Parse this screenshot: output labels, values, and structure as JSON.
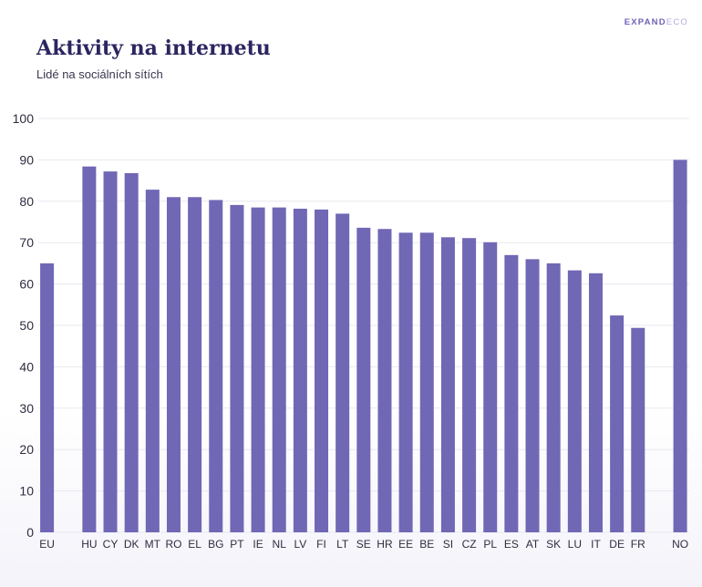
{
  "brand": {
    "bold": "EXPAND",
    "light": "ECO"
  },
  "colors": {
    "bar": "#7067b5",
    "grid": "#e9e8f0",
    "title": "#2b2560",
    "text": "#2f2c40"
  },
  "chart_data": {
    "type": "bar",
    "title": "Aktivity na internetu",
    "subtitle": "Lidé na sociálních sítích",
    "xlabel": "",
    "ylabel": "",
    "ylim": [
      0,
      100
    ],
    "yticks": [
      0,
      10,
      20,
      30,
      40,
      50,
      60,
      70,
      80,
      90,
      100
    ],
    "grid": true,
    "categories": [
      "EU",
      "",
      "HU",
      "CY",
      "DK",
      "MT",
      "RO",
      "EL",
      "BG",
      "PT",
      "IE",
      "NL",
      "LV",
      "FI",
      "LT",
      "SE",
      "HR",
      "EE",
      "BE",
      "SI",
      "CZ",
      "PL",
      "ES",
      "AT",
      "SK",
      "LU",
      "IT",
      "DE",
      "FR",
      "",
      "NO"
    ],
    "values": [
      65,
      null,
      88.4,
      87.2,
      86.8,
      82.8,
      81,
      81,
      80.3,
      79.1,
      78.5,
      78.5,
      78.2,
      78,
      77,
      73.6,
      73.3,
      72.4,
      72.4,
      71.3,
      71.1,
      70.1,
      67,
      66,
      65,
      63.3,
      62.6,
      52.4,
      49.4,
      null,
      90
    ]
  }
}
